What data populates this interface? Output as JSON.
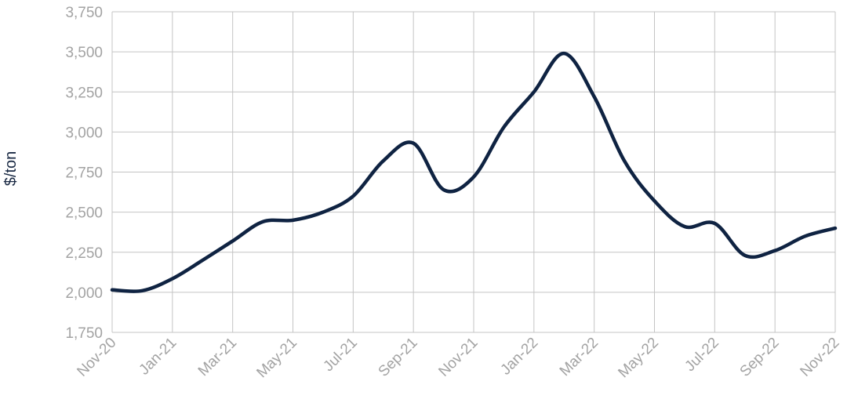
{
  "chart_data": {
    "type": "line",
    "title": "",
    "xlabel": "",
    "ylabel": "$/ton",
    "ylim": [
      1750,
      3750
    ],
    "yticks": [
      1750,
      2000,
      2250,
      2500,
      2750,
      3000,
      3250,
      3500,
      3750
    ],
    "ytick_labels": [
      "1,750",
      "2,000",
      "2,250",
      "2,500",
      "2,750",
      "3,000",
      "3,250",
      "3,500",
      "3,750"
    ],
    "grid": true,
    "legend": "none",
    "x_months": [
      "Nov-20",
      "Dec-20",
      "Jan-21",
      "Feb-21",
      "Mar-21",
      "Apr-21",
      "May-21",
      "Jun-21",
      "Jul-21",
      "Aug-21",
      "Sep-21",
      "Oct-21",
      "Nov-21",
      "Dec-21",
      "Jan-22",
      "Feb-22",
      "Mar-22",
      "Apr-22",
      "May-22",
      "Jun-22",
      "Jul-22",
      "Aug-22",
      "Sep-22",
      "Oct-22",
      "Nov-22"
    ],
    "xtick_labels": [
      "Nov-20",
      "Jan-21",
      "Mar-21",
      "May-21",
      "Jul-21",
      "Sep-21",
      "Nov-21",
      "Jan-22",
      "Mar-22",
      "May-22",
      "Jul-22",
      "Sep-22",
      "Nov-22"
    ],
    "line_color": "#0f2342",
    "series": [
      {
        "values": [
          2015,
          2010,
          2085,
          2200,
          2320,
          2440,
          2450,
          2500,
          2600,
          2820,
          2930,
          2640,
          2720,
          3030,
          3250,
          3490,
          3220,
          2820,
          2570,
          2410,
          2430,
          2230,
          2260,
          2350,
          2400
        ]
      }
    ]
  }
}
